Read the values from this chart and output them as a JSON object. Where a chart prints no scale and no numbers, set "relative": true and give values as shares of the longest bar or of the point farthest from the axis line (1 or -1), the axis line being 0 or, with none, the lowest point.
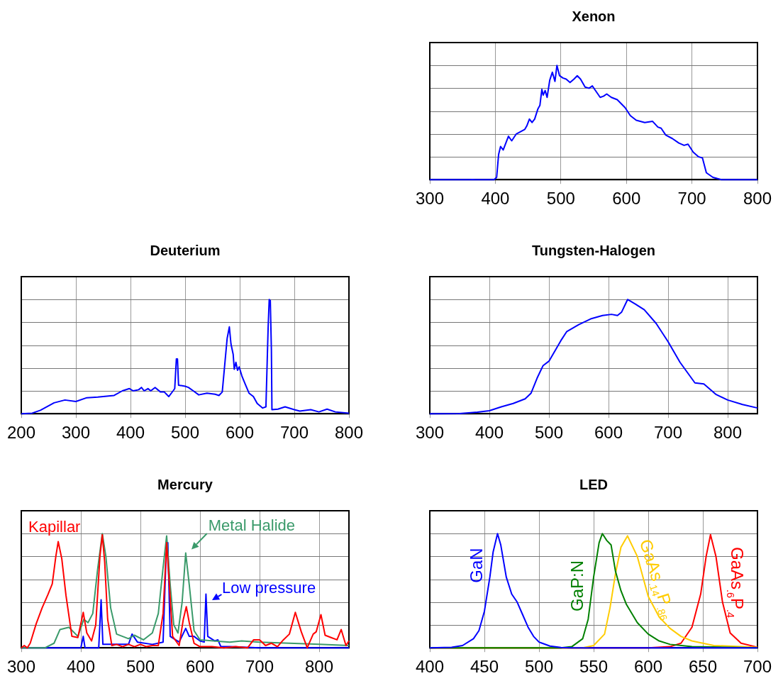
{
  "chart_data": [
    {
      "type": "line",
      "title": "Xenon",
      "relative": true,
      "grid": true,
      "xlim": [
        300,
        800
      ],
      "xticks": [
        300,
        400,
        500,
        600,
        700,
        800
      ],
      "series": [
        {
          "color": "#0000ff",
          "x": [
            300,
            360,
            365,
            370,
            398,
            402,
            405,
            408,
            412,
            420,
            425,
            432,
            445,
            448,
            452,
            456,
            460,
            465,
            468,
            471,
            473,
            476,
            479,
            483,
            487,
            491,
            494,
            498,
            503,
            508,
            514,
            520,
            525,
            530,
            537,
            543,
            548,
            554,
            560,
            565,
            570,
            577,
            586,
            598,
            606,
            615,
            628,
            640,
            648,
            653,
            660,
            670,
            680,
            688,
            694,
            702,
            710,
            716,
            722,
            732,
            745,
            800
          ],
          "values": [
            0,
            0,
            0.002,
            0,
            0,
            0.02,
            0.22,
            0.29,
            0.26,
            0.38,
            0.34,
            0.4,
            0.44,
            0.47,
            0.53,
            0.5,
            0.53,
            0.62,
            0.65,
            0.79,
            0.74,
            0.78,
            0.72,
            0.87,
            0.94,
            0.86,
            1,
            0.91,
            0.89,
            0.88,
            0.85,
            0.88,
            0.91,
            0.88,
            0.81,
            0.8,
            0.82,
            0.77,
            0.72,
            0.73,
            0.75,
            0.72,
            0.7,
            0.63,
            0.56,
            0.52,
            0.5,
            0.51,
            0.46,
            0.45,
            0.39,
            0.36,
            0.32,
            0.3,
            0.31,
            0.24,
            0.2,
            0.19,
            0.06,
            0.02,
            0,
            0
          ]
        }
      ]
    },
    {
      "type": "line",
      "title": "Deuterium",
      "relative": true,
      "grid": true,
      "xlim": [
        200,
        800
      ],
      "xticks": [
        200,
        300,
        400,
        500,
        600,
        700,
        800
      ],
      "series": [
        {
          "color": "#0000ff",
          "x": [
            200,
            220,
            235,
            260,
            280,
            300,
            320,
            340,
            370,
            385,
            398,
            405,
            415,
            420,
            425,
            432,
            437,
            445,
            455,
            462,
            470,
            478,
            481,
            484,
            486,
            488,
            500,
            506,
            515,
            525,
            540,
            555,
            562,
            568,
            572,
            577,
            581,
            584,
            588,
            590,
            593,
            596,
            599,
            604,
            610,
            617,
            625,
            632,
            642,
            648,
            652,
            654,
            656,
            658,
            659,
            670,
            683,
            700,
            710,
            730,
            745,
            760,
            775,
            800
          ],
          "values": [
            0,
            0.005,
            0.03,
            0.095,
            0.12,
            0.107,
            0.14,
            0.146,
            0.16,
            0.2,
            0.22,
            0.2,
            0.21,
            0.23,
            0.2,
            0.22,
            0.2,
            0.23,
            0.19,
            0.19,
            0.15,
            0.2,
            0.22,
            0.48,
            0.48,
            0.25,
            0.24,
            0.23,
            0.2,
            0.165,
            0.18,
            0.17,
            0.16,
            0.19,
            0.4,
            0.66,
            0.76,
            0.61,
            0.52,
            0.39,
            0.45,
            0.38,
            0.41,
            0.33,
            0.26,
            0.18,
            0.15,
            0.09,
            0.05,
            0.06,
            0.75,
            1,
            0.99,
            0.56,
            0.035,
            0.04,
            0.06,
            0.035,
            0.023,
            0.035,
            0.016,
            0.04,
            0.016,
            0.005
          ]
        }
      ]
    },
    {
      "type": "line",
      "title": "Tungsten-Halogen",
      "relative": true,
      "grid": true,
      "xlim": [
        300,
        850
      ],
      "xticks": [
        300,
        400,
        500,
        600,
        700,
        800
      ],
      "series": [
        {
          "color": "#0000ff",
          "x": [
            300,
            350,
            380,
            400,
            420,
            440,
            460,
            470,
            480,
            490,
            500,
            510,
            520,
            530,
            550,
            570,
            590,
            605,
            615,
            622,
            632,
            645,
            660,
            680,
            700,
            720,
            745,
            760,
            780,
            800,
            825,
            850
          ],
          "values": [
            0,
            0.002,
            0.014,
            0.026,
            0.06,
            0.09,
            0.13,
            0.18,
            0.31,
            0.42,
            0.46,
            0.55,
            0.64,
            0.72,
            0.78,
            0.83,
            0.86,
            0.87,
            0.86,
            0.89,
            1,
            0.96,
            0.91,
            0.79,
            0.63,
            0.45,
            0.27,
            0.26,
            0.17,
            0.12,
            0.08,
            0.05
          ]
        }
      ]
    },
    {
      "type": "line",
      "title": "Mercury",
      "relative": true,
      "grid": true,
      "xlim": [
        300,
        850
      ],
      "xticks": [
        300,
        400,
        500,
        600,
        700,
        800
      ],
      "series": [
        {
          "name": "Kapillar",
          "color": "#ff0000",
          "x": [
            300,
            305,
            310,
            315,
            325,
            335,
            345,
            352,
            358,
            362,
            368,
            375,
            385,
            395,
            404,
            410,
            418,
            425,
            432,
            436,
            440,
            445,
            452,
            460,
            470,
            480,
            490,
            500,
            510,
            520,
            530,
            538,
            544,
            548,
            554,
            565,
            572,
            577,
            582,
            590,
            600,
            620,
            640,
            660,
            680,
            690,
            700,
            710,
            720,
            730,
            740,
            750,
            760,
            770,
            780,
            790,
            795,
            803,
            810,
            820,
            830,
            837,
            845,
            850
          ],
          "values": [
            0,
            0.02,
            0,
            0.04,
            0.21,
            0.35,
            0.47,
            0.56,
            0.8,
            0.93,
            0.78,
            0.46,
            0.1,
            0.09,
            0.31,
            0.13,
            0.06,
            0.2,
            0.8,
            0.99,
            0.75,
            0.25,
            0.02,
            0.03,
            0.01,
            0.03,
            0.01,
            0.03,
            0.01,
            0.02,
            0.02,
            0.3,
            0.92,
            0.6,
            0.1,
            0.02,
            0.25,
            0.36,
            0.22,
            0.04,
            0.01,
            0.01,
            0,
            0.01,
            0,
            0.07,
            0.07,
            0.02,
            0.04,
            0.01,
            0.07,
            0.12,
            0.31,
            0.14,
            0,
            0.12,
            0.14,
            0.29,
            0.11,
            0.09,
            0.07,
            0.16,
            0.02,
            0.06
          ]
        },
        {
          "name": "Metal Halide",
          "color": "#3a9a6a",
          "x": [
            300,
            340,
            355,
            365,
            380,
            395,
            405,
            412,
            420,
            428,
            436,
            442,
            450,
            460,
            480,
            490,
            505,
            520,
            530,
            538,
            544,
            550,
            556,
            563,
            570,
            576,
            582,
            590,
            600,
            650,
            670,
            700,
            800,
            850
          ],
          "values": [
            0,
            0,
            0.04,
            0.16,
            0.18,
            0.1,
            0.25,
            0.22,
            0.3,
            0.68,
            1,
            0.8,
            0.35,
            0.12,
            0.08,
            0.11,
            0.07,
            0.13,
            0.3,
            0.7,
            0.98,
            0.55,
            0.2,
            0.13,
            0.4,
            0.83,
            0.55,
            0.15,
            0.07,
            0.05,
            0.06,
            0.05,
            0.03,
            0.02
          ]
        },
        {
          "name": "Low pressure",
          "color": "#0000ff",
          "x": [
            300,
            400,
            404,
            407,
            430,
            434,
            437,
            450,
            480,
            486,
            495,
            520,
            538,
            543,
            546,
            550,
            565,
            576,
            582,
            590,
            600,
            607,
            610,
            613,
            625,
            630,
            635,
            650,
            700,
            850
          ],
          "values": [
            0,
            0,
            0.1,
            0,
            0,
            0.42,
            0.03,
            0.03,
            0.03,
            0.12,
            0.05,
            0.03,
            0.05,
            0.8,
            0.92,
            0.1,
            0.05,
            0.17,
            0.1,
            0.1,
            0.06,
            0.05,
            0.47,
            0.1,
            0.06,
            0.07,
            0.01,
            0.01,
            0,
            0
          ]
        }
      ]
    },
    {
      "type": "line",
      "title": "LED",
      "relative": true,
      "grid": true,
      "xlim": [
        400,
        700
      ],
      "xticks": [
        400,
        450,
        500,
        550,
        600,
        650,
        700
      ],
      "series": [
        {
          "name": "GaN",
          "color": "#0000ff",
          "x": [
            400,
            420,
            430,
            440,
            445,
            450,
            455,
            458,
            462,
            465,
            470,
            475,
            480,
            485,
            490,
            495,
            500,
            510,
            520,
            530,
            700
          ],
          "values": [
            0,
            0.005,
            0.02,
            0.08,
            0.15,
            0.32,
            0.62,
            0.84,
            1,
            0.9,
            0.62,
            0.47,
            0.4,
            0.29,
            0.18,
            0.1,
            0.05,
            0.015,
            0.003,
            0,
            0
          ]
        },
        {
          "name": "GaP:N",
          "color": "#008000",
          "x": [
            400,
            520,
            530,
            540,
            545,
            550,
            555,
            558,
            562,
            566,
            570,
            575,
            580,
            590,
            600,
            610,
            620,
            640,
            700
          ],
          "values": [
            0,
            0,
            0.01,
            0.08,
            0.25,
            0.62,
            0.92,
            1,
            0.94,
            0.9,
            0.67,
            0.5,
            0.38,
            0.22,
            0.12,
            0.06,
            0.03,
            0.01,
            0
          ]
        },
        {
          "name": "GaAs$_{.14}$P$_{.86}$",
          "color": "#ffcc00",
          "x": [
            400,
            540,
            550,
            560,
            565,
            570,
            575,
            581,
            590,
            600,
            610,
            620,
            630,
            640,
            660,
            700
          ],
          "values": [
            0,
            0,
            0.02,
            0.12,
            0.35,
            0.65,
            0.88,
            0.98,
            0.8,
            0.45,
            0.27,
            0.17,
            0.1,
            0.06,
            0.02,
            0.005
          ]
        },
        {
          "name": "GaAs$_{.6}$P$_{.4}$",
          "color": "#ff0000",
          "x": [
            400,
            600,
            620,
            630,
            640,
            648,
            653,
            657,
            662,
            668,
            675,
            685,
            700
          ],
          "values": [
            0,
            0,
            0.01,
            0.04,
            0.18,
            0.47,
            0.8,
            0.99,
            0.8,
            0.4,
            0.13,
            0.04,
            0.005
          ]
        }
      ]
    }
  ]
}
